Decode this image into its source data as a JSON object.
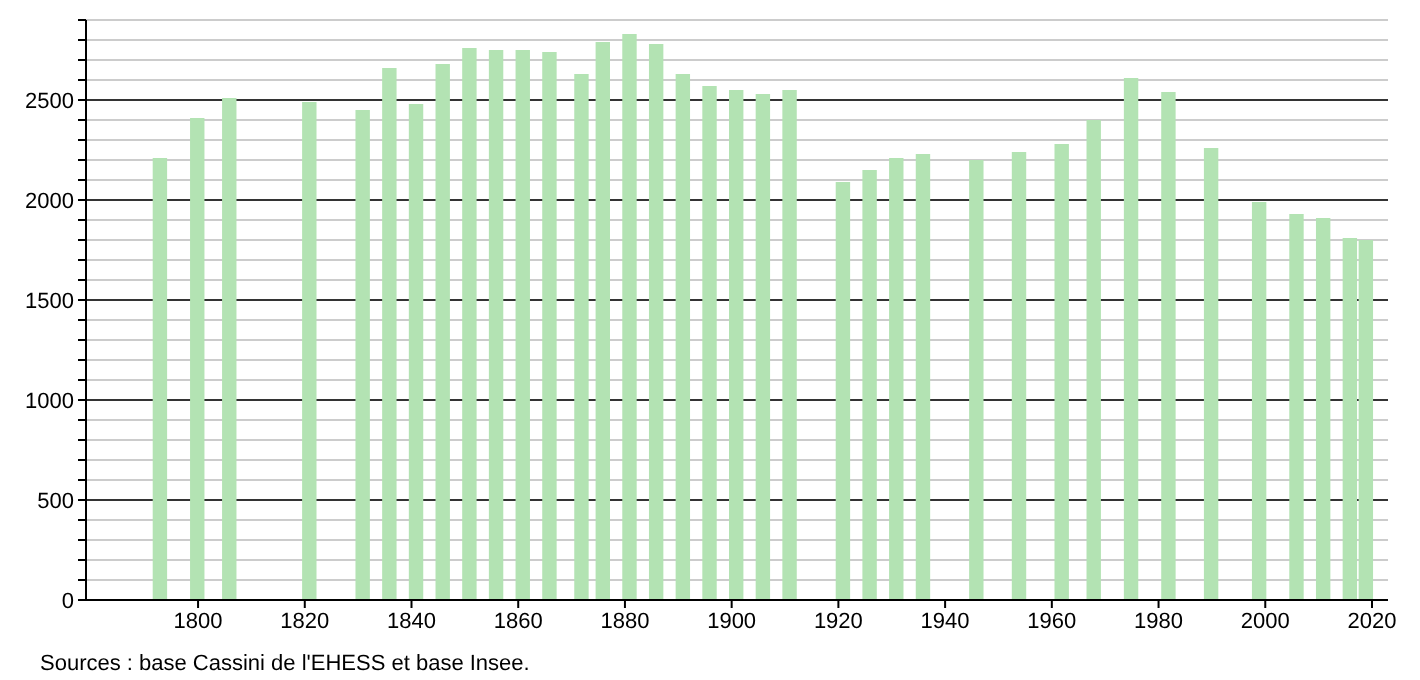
{
  "chart_data": {
    "type": "bar",
    "x": [
      1793,
      1800,
      1806,
      1821,
      1831,
      1836,
      1841,
      1846,
      1851,
      1856,
      1861,
      1866,
      1872,
      1876,
      1881,
      1886,
      1891,
      1896,
      1901,
      1906,
      1911,
      1921,
      1926,
      1931,
      1936,
      1946,
      1954,
      1962,
      1968,
      1975,
      1982,
      1990,
      1999,
      2006,
      2011,
      2016,
      2019
    ],
    "values": [
      2210,
      2410,
      2510,
      2490,
      2450,
      2660,
      2480,
      2680,
      2760,
      2750,
      2750,
      2740,
      2630,
      2790,
      2830,
      2780,
      2630,
      2570,
      2550,
      2530,
      2550,
      2090,
      2150,
      2210,
      2230,
      2200,
      2240,
      2280,
      2400,
      2610,
      2540,
      2260,
      1990,
      1930,
      1910,
      1810,
      1800
    ],
    "color": "#b3e3b3",
    "xlim": [
      1779,
      2023
    ],
    "xticks": [
      1800,
      1820,
      1840,
      1860,
      1880,
      1900,
      1920,
      1940,
      1960,
      1980,
      2000,
      2020
    ],
    "ylim": [
      0,
      2900
    ],
    "yticks": [
      0,
      {
        "value": 100,
        "label": null
      },
      {
        "value": 200,
        "label": null
      },
      {
        "value": 300,
        "label": null
      },
      {
        "value": 400,
        "label": null
      },
      500,
      {
        "value": 600,
        "label": null
      },
      {
        "value": 700,
        "label": null
      },
      {
        "value": 800,
        "label": null
      },
      {
        "value": 900,
        "label": null
      },
      1000,
      {
        "value": 1100,
        "label": null
      },
      {
        "value": 1200,
        "label": null
      },
      {
        "value": 1300,
        "label": null
      },
      {
        "value": 1400,
        "label": null
      },
      1500,
      {
        "value": 1600,
        "label": null
      },
      {
        "value": 1700,
        "label": null
      },
      {
        "value": 1800,
        "label": null
      },
      {
        "value": 1900,
        "label": null
      },
      2000,
      {
        "value": 2100,
        "label": null
      },
      {
        "value": 2200,
        "label": null
      },
      {
        "value": 2300,
        "label": null
      },
      {
        "value": 2400,
        "label": null
      },
      2500,
      {
        "value": 2600,
        "label": null
      },
      {
        "value": 2700,
        "label": null
      },
      {
        "value": 2800,
        "label": null
      },
      {
        "value": 2900,
        "label": null
      }
    ],
    "grid": "y",
    "annotations": [
      "Sources : base Cassini de l'EHESS et base Insee."
    ]
  }
}
